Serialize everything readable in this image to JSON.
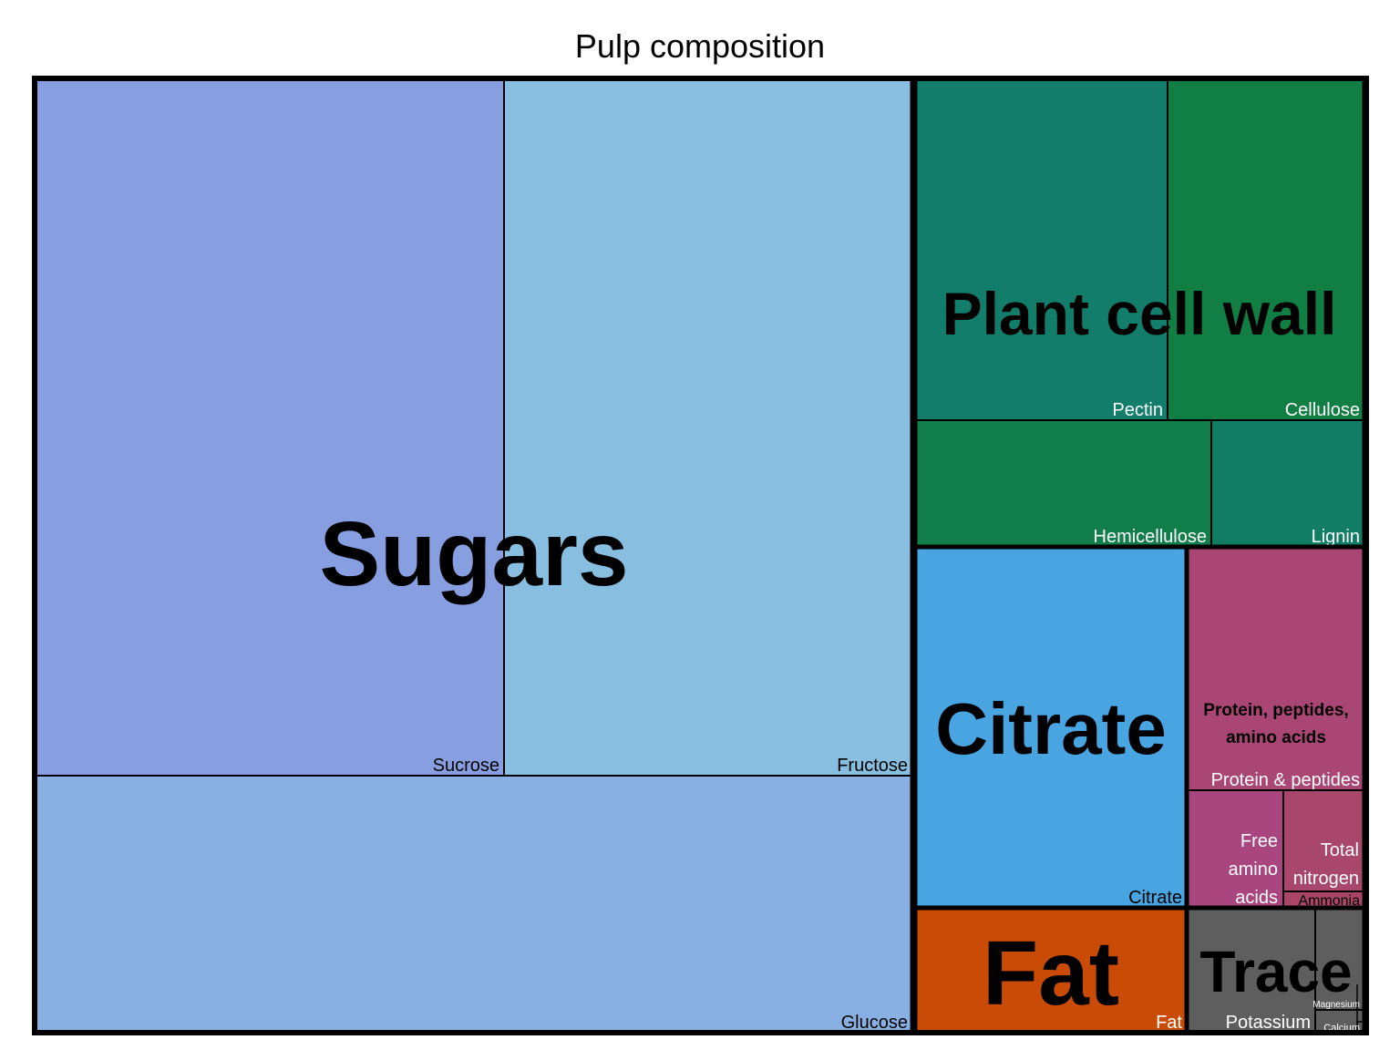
{
  "chart_data": {
    "type": "treemap",
    "title": "Pulp composition",
    "groups": [
      {
        "name": "Sugars",
        "items": [
          {
            "name": "Sucrose",
            "value": 40.4,
            "color": "#879fe0",
            "label_color": "#000000"
          },
          {
            "name": "Fructose",
            "value": 35.1,
            "color": "#88bfe0",
            "label_color": "#000000"
          },
          {
            "name": "Glucose",
            "value": 26.0,
            "color": "#88b0e2",
            "label_color": "#000000"
          }
        ]
      },
      {
        "name": "Plant cell wall",
        "items": [
          {
            "name": "Pectin",
            "value": 7.1,
            "color": "#117d6a",
            "label_color": "#ffffff"
          },
          {
            "name": "Cellulose",
            "value": 5.5,
            "color": "#117e44",
            "label_color": "#ffffff"
          },
          {
            "name": "Hemicellulose",
            "value": 3.6,
            "color": "#117e4c",
            "label_color": "#ffffff"
          },
          {
            "name": "Lignin",
            "value": 1.8,
            "color": "#117d64",
            "label_color": "#ffffff"
          }
        ]
      },
      {
        "name": "Citrate",
        "items": [
          {
            "name": "Citrate",
            "value": 8.7,
            "color": "#49a4e2",
            "label_color": "#000000"
          }
        ]
      },
      {
        "name": "Protein, peptides, amino acids",
        "items": [
          {
            "name": "Protein & peptides",
            "value": 3.0,
            "color": "#a94674",
            "label_color": "#ffffff"
          },
          {
            "name": "Free amino acids",
            "value": 1.3,
            "color": "#a9467f",
            "label_color": "#ffffff"
          },
          {
            "name": "Total nitrogen",
            "value": 0.95,
            "color": "#a9466b",
            "label_color": "#ffffff"
          },
          {
            "name": "Ammonia",
            "value": 0.15,
            "color": "#a94668",
            "label_color": "#000000"
          }
        ]
      },
      {
        "name": "Fat",
        "items": [
          {
            "name": "Fat",
            "value": 3.5,
            "color": "#c94b06",
            "label_color": "#ffffff"
          }
        ]
      },
      {
        "name": "Trace",
        "items": [
          {
            "name": "Potassium",
            "value": 1.7,
            "color": "#5e5e5e",
            "label_color": "#ffffff"
          },
          {
            "name": "Magnesium",
            "value": 0.3,
            "color": "#5e5e5e",
            "label_color": "#ffffff"
          },
          {
            "name": "Calcium",
            "value": 0.2,
            "color": "#5e5e5e",
            "label_color": "#ffffff"
          }
        ]
      }
    ]
  }
}
